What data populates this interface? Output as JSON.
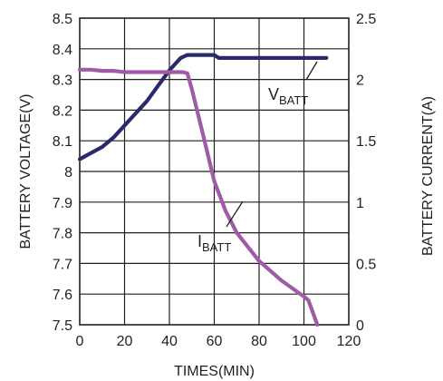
{
  "chart_data": {
    "type": "line",
    "xlabel": "TIMES(MIN)",
    "ylabel_left": "BATTERY VOLTAGE(V)",
    "ylabel_right": "BATTERY CURRENT(A)",
    "xlim": [
      0,
      120
    ],
    "ylim_left": [
      7.5,
      8.5
    ],
    "ylim_right": [
      0,
      2.5
    ],
    "x_ticks": [
      "0",
      "20",
      "40",
      "60",
      "80",
      "100",
      "120"
    ],
    "y_left_ticks": [
      "7.5",
      "7.6",
      "7.7",
      "7.8",
      "7.9",
      "8",
      "8.1",
      "8.2",
      "8.3",
      "8.4",
      "8.5"
    ],
    "y_right_ticks": [
      "0",
      "0.5",
      "1",
      "1.5",
      "2",
      "2.5"
    ],
    "grid": true,
    "series": [
      {
        "name": "VBATT",
        "label_main": "V",
        "label_sub": "BATT",
        "axis": "left",
        "color": "#2a2a6b",
        "x": [
          0,
          5,
          10,
          15,
          20,
          25,
          30,
          35,
          40,
          45,
          48,
          50,
          55,
          60,
          62,
          65,
          70,
          80,
          90,
          100,
          105,
          110
        ],
        "y": [
          8.04,
          8.06,
          8.08,
          8.11,
          8.15,
          8.19,
          8.23,
          8.28,
          8.33,
          8.37,
          8.38,
          8.38,
          8.38,
          8.38,
          8.37,
          8.37,
          8.37,
          8.37,
          8.37,
          8.37,
          8.37,
          8.37
        ]
      },
      {
        "name": "IBATT",
        "label_main": "I",
        "label_sub": "BATT",
        "axis": "right",
        "color": "#a05ba8",
        "x": [
          0,
          5,
          10,
          15,
          20,
          25,
          30,
          35,
          40,
          45,
          46,
          48,
          50,
          55,
          60,
          65,
          70,
          80,
          90,
          100,
          102,
          106
        ],
        "y": [
          2.08,
          2.08,
          2.07,
          2.07,
          2.06,
          2.06,
          2.06,
          2.06,
          2.06,
          2.06,
          2.06,
          2.05,
          1.92,
          1.55,
          1.17,
          0.93,
          0.75,
          0.52,
          0.36,
          0.23,
          0.2,
          0.0
        ]
      }
    ]
  }
}
